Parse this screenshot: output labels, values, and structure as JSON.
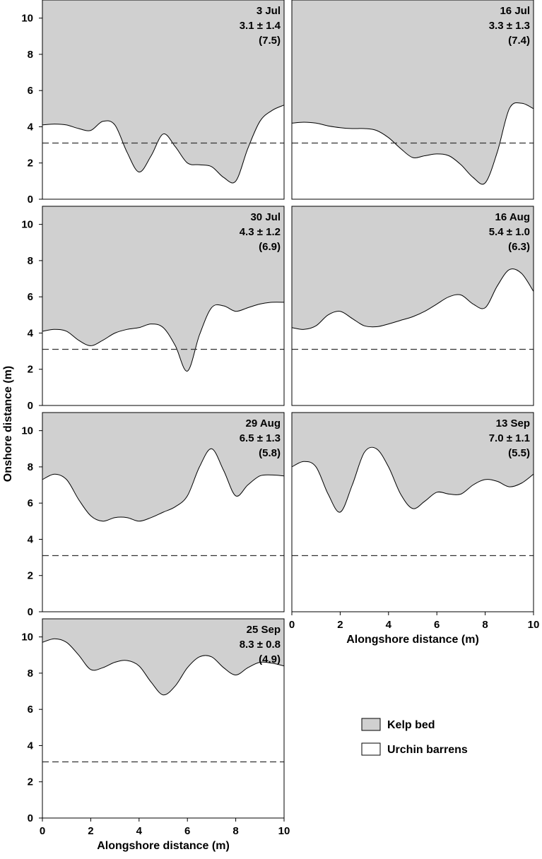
{
  "chart_data": {
    "type": "area",
    "ylabel": "Onshore distance (m)",
    "xlabel": "Alongshore distance (m)",
    "xlim": [
      0,
      10
    ],
    "ylim": [
      0,
      11
    ],
    "x_ticks": [
      "0",
      "2",
      "4",
      "6",
      "8",
      "10"
    ],
    "y_ticks": [
      "0",
      "2",
      "4",
      "6",
      "8",
      "10"
    ],
    "reference_line": 3.1,
    "legend": [
      {
        "label": "Kelp bed",
        "color": "#d0d0d0"
      },
      {
        "label": "Urchin barrens",
        "color": "#ffffff"
      }
    ],
    "panels": [
      {
        "date": "3 Jul",
        "stat": "3.1 ± 1.4",
        "paren": "(7.5)",
        "x": [
          0,
          0.5,
          1,
          1.5,
          2,
          2.5,
          3,
          3.5,
          4,
          4.5,
          5,
          5.5,
          6,
          6.5,
          7,
          7.5,
          8,
          8.5,
          9,
          9.5,
          10
        ],
        "y": [
          4.1,
          4.15,
          4.1,
          3.9,
          3.8,
          4.3,
          4.1,
          2.6,
          1.5,
          2.4,
          3.6,
          2.9,
          2.0,
          1.9,
          1.8,
          1.2,
          1.0,
          2.8,
          4.3,
          4.9,
          5.2
        ]
      },
      {
        "date": "16 Jul",
        "stat": "3.3 ± 1.3",
        "paren": "(7.4)",
        "x": [
          0,
          0.5,
          1,
          1.5,
          2,
          2.5,
          3,
          3.5,
          4,
          4.5,
          5,
          5.5,
          6,
          6.5,
          7,
          7.5,
          8,
          8.5,
          9,
          9.5,
          10
        ],
        "y": [
          4.2,
          4.25,
          4.2,
          4.05,
          3.95,
          3.9,
          3.9,
          3.8,
          3.4,
          2.8,
          2.3,
          2.4,
          2.5,
          2.4,
          1.9,
          1.2,
          0.9,
          2.6,
          5.0,
          5.3,
          5.0
        ]
      },
      {
        "date": "30 Jul",
        "stat": "4.3 ± 1.2",
        "paren": "(6.9)",
        "x": [
          0,
          0.5,
          1,
          1.5,
          2,
          2.5,
          3,
          3.5,
          4,
          4.5,
          5,
          5.5,
          6,
          6.5,
          7,
          7.5,
          8,
          8.5,
          9,
          9.5,
          10
        ],
        "y": [
          4.1,
          4.2,
          4.1,
          3.6,
          3.3,
          3.6,
          4.0,
          4.2,
          4.3,
          4.5,
          4.3,
          3.3,
          1.9,
          3.9,
          5.4,
          5.5,
          5.2,
          5.4,
          5.6,
          5.7,
          5.7
        ]
      },
      {
        "date": "16 Aug",
        "stat": "5.4 ± 1.0",
        "paren": "(6.3)",
        "x": [
          0,
          0.5,
          1,
          1.5,
          2,
          2.5,
          3,
          3.5,
          4,
          4.5,
          5,
          5.5,
          6,
          6.5,
          7,
          7.5,
          8,
          8.5,
          9,
          9.5,
          10
        ],
        "y": [
          4.3,
          4.2,
          4.4,
          5.0,
          5.2,
          4.8,
          4.4,
          4.35,
          4.5,
          4.7,
          4.9,
          5.2,
          5.6,
          6.0,
          6.1,
          5.6,
          5.4,
          6.6,
          7.5,
          7.3,
          6.3
        ]
      },
      {
        "date": "29 Aug",
        "stat": "6.5 ± 1.3",
        "paren": "(5.8)",
        "x": [
          0,
          0.5,
          1,
          1.5,
          2,
          2.5,
          3,
          3.5,
          4,
          4.5,
          5,
          5.5,
          6,
          6.5,
          7,
          7.5,
          8,
          8.5,
          9,
          9.5,
          10
        ],
        "y": [
          7.3,
          7.6,
          7.3,
          6.2,
          5.3,
          5.0,
          5.2,
          5.2,
          5.0,
          5.2,
          5.5,
          5.8,
          6.4,
          8.0,
          9.0,
          7.8,
          6.4,
          7.0,
          7.5,
          7.55,
          7.5
        ]
      },
      {
        "date": "13 Sep",
        "stat": "7.0 ± 1.1",
        "paren": "(5.5)",
        "x": [
          0,
          0.5,
          1,
          1.5,
          2,
          2.5,
          3,
          3.5,
          4,
          4.5,
          5,
          5.5,
          6,
          6.5,
          7,
          7.5,
          8,
          8.5,
          9,
          9.5,
          10
        ],
        "y": [
          8.0,
          8.3,
          8.0,
          6.5,
          5.5,
          7.0,
          8.8,
          9.0,
          8.0,
          6.5,
          5.7,
          6.1,
          6.6,
          6.5,
          6.5,
          7.0,
          7.3,
          7.2,
          6.9,
          7.1,
          7.6
        ]
      },
      {
        "date": "25 Sep",
        "stat": "8.3 ± 0.8",
        "paren": "(4.9)",
        "x": [
          0,
          0.5,
          1,
          1.5,
          2,
          2.5,
          3,
          3.5,
          4,
          4.5,
          5,
          5.5,
          6,
          6.5,
          7,
          7.5,
          8,
          8.5,
          9,
          9.5,
          10
        ],
        "y": [
          9.7,
          9.9,
          9.7,
          9.0,
          8.2,
          8.3,
          8.6,
          8.7,
          8.4,
          7.5,
          6.8,
          7.3,
          8.3,
          8.9,
          8.9,
          8.3,
          7.9,
          8.3,
          8.6,
          8.55,
          8.4
        ]
      }
    ]
  }
}
